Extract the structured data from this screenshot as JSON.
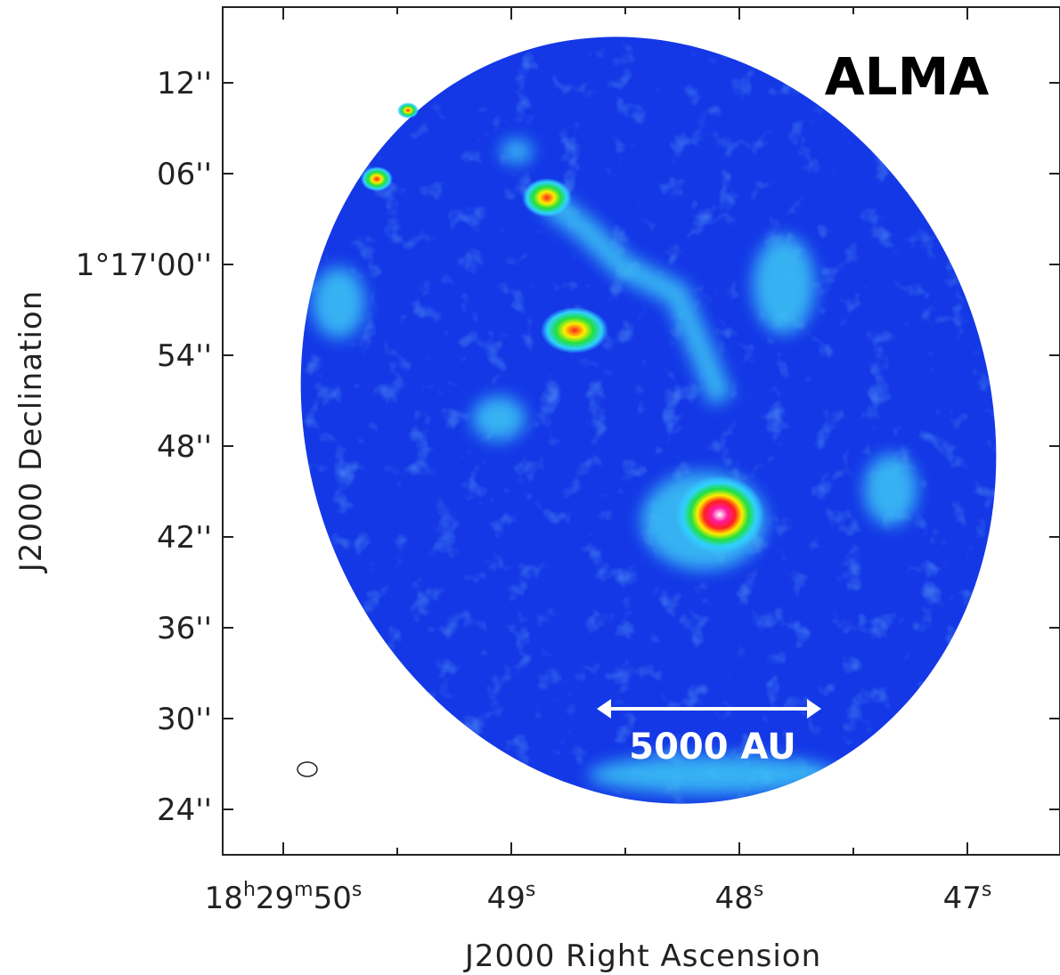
{
  "title": "ALMA",
  "scale_bar": "5000 AU",
  "x_label": "J2000 Right Ascension",
  "y_label": "J2000 Declination",
  "y_ticks": [
    "12''",
    "06''",
    "1°17'00''",
    "54''",
    "48''",
    "42''",
    "36''",
    "30''",
    "24''"
  ],
  "x_ticks": [
    {
      "parts": [
        "18",
        "h",
        "29",
        "m",
        "50",
        "s"
      ]
    },
    {
      "parts": [
        "49",
        "s"
      ]
    },
    {
      "parts": [
        "48",
        "s"
      ]
    },
    {
      "parts": [
        "47",
        "s"
      ]
    }
  ]
}
